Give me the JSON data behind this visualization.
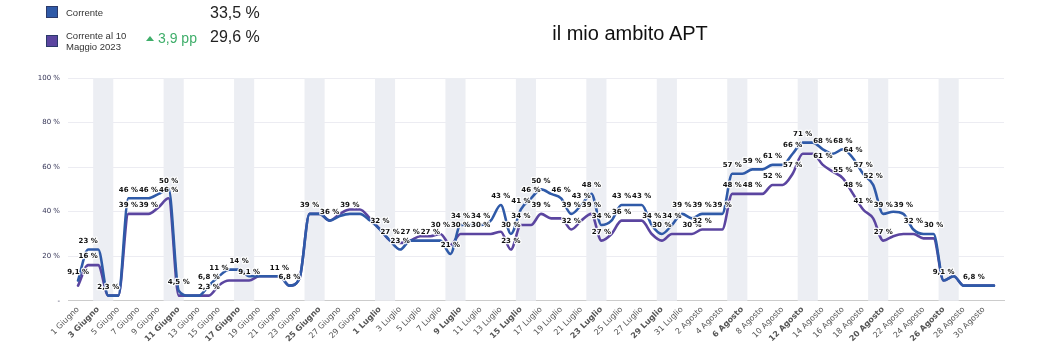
{
  "chart_data": {
    "type": "line",
    "title": "il mio ambito APT",
    "annotations": [
      "33,5 %",
      "3,9 pp",
      "29,6 %"
    ],
    "legend": "top left",
    "grid": "y",
    "marker": "none",
    "line_style": "solid",
    "ylim": [
      0,
      100
    ],
    "yticks": [
      {
        "value": 0,
        "label": "-"
      },
      {
        "value": 20,
        "label": "20 %"
      },
      {
        "value": 40,
        "label": "40 %"
      },
      {
        "value": 60,
        "label": "60 %"
      },
      {
        "value": 80,
        "label": "80 %"
      },
      {
        "value": 100,
        "label": "100 %"
      }
    ],
    "xlim": [
      "--05-31",
      "--09-01"
    ],
    "xticks": [
      {
        "value": "--06-01",
        "label": "1 Giugno"
      },
      {
        "value": "--06-03",
        "label": "3 Giugno"
      },
      {
        "value": "--06-05",
        "label": "5 Giugno"
      },
      {
        "value": "--06-07",
        "label": "7 Giugno"
      },
      {
        "value": "--06-09",
        "label": "9 Giugno"
      },
      {
        "value": "--06-11",
        "label": "11 Giugno"
      },
      {
        "value": "--06-13",
        "label": "13 Giugno"
      },
      {
        "value": "--06-15",
        "label": "15 Giugno"
      },
      {
        "value": "--06-17",
        "label": "17 Giugno"
      },
      {
        "value": "--06-19",
        "label": "19 Giugno"
      },
      {
        "value": "--06-21",
        "label": "21 Giugno"
      },
      {
        "value": "--06-23",
        "label": "23 Giugno"
      },
      {
        "value": "--06-25",
        "label": "25 Giugno"
      },
      {
        "value": "--06-27",
        "label": "27 Giugno"
      },
      {
        "value": "--06-29",
        "label": "29 Giugno"
      },
      {
        "value": "--07-01",
        "label": "1 Luglio"
      },
      {
        "value": "--07-03",
        "label": "3 Luglio"
      },
      {
        "value": "--07-05",
        "label": "5 Luglio"
      },
      {
        "value": "--07-07",
        "label": "7 Luglio"
      },
      {
        "value": "--07-09",
        "label": "9 Luglio"
      },
      {
        "value": "--07-11",
        "label": "11 Luglio"
      },
      {
        "value": "--07-13",
        "label": "13 Luglio"
      },
      {
        "value": "--07-15",
        "label": "15 Luglio"
      },
      {
        "value": "--07-17",
        "label": "17 Luglio"
      },
      {
        "value": "--07-19",
        "label": "19 Luglio"
      },
      {
        "value": "--07-21",
        "label": "21 Luglio"
      },
      {
        "value": "--07-23",
        "label": "23 Luglio"
      },
      {
        "value": "--07-25",
        "label": "25 Luglio"
      },
      {
        "value": "--07-27",
        "label": "27 Luglio"
      },
      {
        "value": "--07-29",
        "label": "29 Luglio"
      },
      {
        "value": "--07-31",
        "label": "31 Luglio"
      },
      {
        "value": "--08-02",
        "label": "2 Agosto"
      },
      {
        "value": "--08-04",
        "label": "4 Agosto"
      },
      {
        "value": "--08-06",
        "label": "6 Agosto"
      },
      {
        "value": "--08-08",
        "label": "8 Agosto"
      },
      {
        "value": "--08-10",
        "label": "10 Agosto"
      },
      {
        "value": "--08-12",
        "label": "12 Agosto"
      },
      {
        "value": "--08-14",
        "label": "14 Agosto"
      },
      {
        "value": "--08-16",
        "label": "16 Agosto"
      },
      {
        "value": "--08-18",
        "label": "18 Agosto"
      },
      {
        "value": "--08-20",
        "label": "20 Agosto"
      },
      {
        "value": "--08-22",
        "label": "22 Agosto"
      },
      {
        "value": "--08-24",
        "label": "24 Agosto"
      },
      {
        "value": "--08-26",
        "label": "26 Agosto"
      },
      {
        "value": "--08-28",
        "label": "28 Agosto"
      },
      {
        "value": "--08-30",
        "label": "30 Agosto"
      }
    ],
    "bands": [
      {
        "axis": "x",
        "from": "--06-02T12:00",
        "to": "--06-04T12:00",
        "color": "#eceef3"
      },
      {
        "axis": "x",
        "from": "--06-09T12:00",
        "to": "--06-11T12:00",
        "color": "#eceef3"
      },
      {
        "axis": "x",
        "from": "--06-16T12:00",
        "to": "--06-18T12:00",
        "color": "#eceef3"
      },
      {
        "axis": "x",
        "from": "--06-23T12:00",
        "to": "--06-25T12:00",
        "color": "#eceef3"
      },
      {
        "axis": "x",
        "from": "--06-30T12:00",
        "to": "--07-02T12:00",
        "color": "#eceef3"
      },
      {
        "axis": "x",
        "from": "--07-07T12:00",
        "to": "--07-09T12:00",
        "color": "#eceef3"
      },
      {
        "axis": "x",
        "from": "--07-14T12:00",
        "to": "--07-16T12:00",
        "color": "#eceef3"
      },
      {
        "axis": "x",
        "from": "--07-21T12:00",
        "to": "--07-23T12:00",
        "color": "#eceef3"
      },
      {
        "axis": "x",
        "from": "--07-28T12:00",
        "to": "--07-30T12:00",
        "color": "#eceef3"
      },
      {
        "axis": "x",
        "from": "--08-04T12:00",
        "to": "--08-06T12:00",
        "color": "#eceef3"
      },
      {
        "axis": "x",
        "from": "--08-11T12:00",
        "to": "--08-13T12:00",
        "color": "#eceef3"
      },
      {
        "axis": "x",
        "from": "--08-18T12:00",
        "to": "--08-20T12:00",
        "color": "#eceef3"
      },
      {
        "axis": "x",
        "from": "--08-25T12:00",
        "to": "--08-27T12:00",
        "color": "#eceef3"
      }
    ],
    "x": [
      "--06-01",
      "--06-02",
      "--06-03",
      "--06-04",
      "--06-05",
      "--06-06",
      "--06-07",
      "--06-08",
      "--06-09",
      "--06-10",
      "--06-11",
      "--06-12",
      "--06-13",
      "--06-14",
      "--06-15",
      "--06-16",
      "--06-17",
      "--06-18",
      "--06-19",
      "--06-20",
      "--06-21",
      "--06-22",
      "--06-23",
      "--06-24",
      "--06-25",
      "--06-26",
      "--06-27",
      "--06-28",
      "--06-29",
      "--06-30",
      "--07-01",
      "--07-02",
      "--07-03",
      "--07-04",
      "--07-05",
      "--07-06",
      "--07-07",
      "--07-08",
      "--07-09",
      "--07-10",
      "--07-11",
      "--07-12",
      "--07-13",
      "--07-14",
      "--07-15",
      "--07-16",
      "--07-17",
      "--07-18",
      "--07-19",
      "--07-20",
      "--07-21",
      "--07-22",
      "--07-23",
      "--07-24",
      "--07-25",
      "--07-26",
      "--07-27",
      "--07-28",
      "--07-29",
      "--07-30",
      "--07-31",
      "--08-01",
      "--08-02",
      "--08-03",
      "--08-04",
      "--08-05",
      "--08-06",
      "--08-07",
      "--08-08",
      "--08-09",
      "--08-10",
      "--08-11",
      "--08-12",
      "--08-13",
      "--08-14",
      "--08-15",
      "--08-16",
      "--08-17",
      "--08-18",
      "--08-19",
      "--08-20",
      "--08-21",
      "--08-22",
      "--08-23",
      "--08-24",
      "--08-25",
      "--08-26",
      "--08-27",
      "--08-28",
      "--08-29",
      "--08-30",
      "--08-31"
    ],
    "series": [
      {
        "name": "Corrente",
        "color": "#2f5aa8",
        "values": [
          9.1,
          23,
          23,
          2.3,
          2.3,
          46,
          46,
          46,
          48,
          50,
          4.5,
          2.3,
          2.3,
          6.8,
          11,
          14,
          14,
          11,
          11,
          11,
          11,
          6.8,
          10,
          39,
          39,
          36,
          38,
          39,
          39,
          36,
          32,
          27,
          23,
          27,
          27,
          27,
          27,
          21,
          34,
          34,
          34,
          36,
          43,
          30,
          41,
          46,
          50,
          48,
          46,
          39,
          43,
          48,
          34,
          36,
          43,
          43,
          43,
          34,
          30,
          34,
          39,
          37,
          39,
          39,
          39,
          57,
          57,
          59,
          59,
          61,
          61,
          66,
          71,
          71,
          68,
          66,
          68,
          64,
          57,
          52,
          39,
          40,
          39,
          32,
          30,
          30,
          9.1,
          11,
          6.8,
          6.8,
          6.8,
          6.8
        ],
        "value_labels": [
          "9,1 %",
          "23 %",
          null,
          "2,3 %",
          null,
          "46 %",
          null,
          "46 %",
          null,
          "50 %",
          "4,5 %",
          null,
          null,
          "6,8 %",
          "11 %",
          null,
          "14 %",
          null,
          null,
          null,
          "11 %",
          "6,8 %",
          null,
          "39 %",
          null,
          "36 %",
          null,
          "39 %",
          null,
          null,
          "32 %",
          "27 %",
          "23 %",
          "27 %",
          null,
          "27 %",
          null,
          "21 %",
          "34 %",
          null,
          "34 %",
          null,
          "43 %",
          "30 %",
          "41 %",
          "46 %",
          "50 %",
          null,
          "46 %",
          "39 %",
          "43 %",
          "48 %",
          "34 %",
          null,
          "43 %",
          null,
          "43 %",
          "34 %",
          "30 %",
          "34 %",
          "39 %",
          null,
          "39 %",
          null,
          "39 %",
          "57 %",
          null,
          "59 %",
          null,
          "61 %",
          null,
          "66 %",
          "71 %",
          null,
          "68 %",
          null,
          "68 %",
          "64 %",
          "57 %",
          "52 %",
          "39 %",
          null,
          "39 %",
          "32 %",
          null,
          "30 %",
          "9,1 %",
          null,
          null,
          "6,8 %",
          null,
          null
        ]
      },
      {
        "name": "Corrente al 10 Maggio 2023",
        "color": "#5b45a0",
        "values": [
          6.8,
          16,
          16,
          2.3,
          2.3,
          39,
          39,
          39,
          42,
          46,
          2.3,
          2.3,
          2.3,
          2.3,
          7,
          9.1,
          9.1,
          9.1,
          11,
          11,
          11,
          6.8,
          10,
          39,
          39,
          36,
          39,
          41,
          41,
          37,
          32,
          27,
          26,
          27,
          29,
          29,
          30,
          25,
          30,
          30,
          30,
          30,
          31,
          23,
          34,
          34,
          39,
          37,
          37,
          32,
          36,
          39,
          27,
          30,
          36,
          36,
          36,
          30,
          27,
          30,
          30,
          30,
          32,
          32,
          32,
          48,
          48,
          48,
          48,
          52,
          52,
          57,
          66,
          66,
          61,
          58,
          55,
          48,
          41,
          37,
          27,
          29,
          30,
          30,
          28,
          28,
          9.1,
          11,
          6.8,
          6.8,
          6.8,
          6.8
        ],
        "value_labels": [
          null,
          "16 %",
          null,
          null,
          null,
          "39 %",
          null,
          "39 %",
          null,
          "46 %",
          null,
          null,
          null,
          "2,3 %",
          null,
          null,
          null,
          "9,1 %",
          null,
          null,
          null,
          null,
          null,
          null,
          null,
          null,
          null,
          null,
          null,
          null,
          null,
          null,
          null,
          null,
          null,
          null,
          "30 %",
          null,
          "30 %",
          null,
          "30 %",
          null,
          null,
          "23 %",
          "34 %",
          null,
          "39 %",
          null,
          null,
          "32 %",
          null,
          "39 %",
          "27 %",
          null,
          "36 %",
          null,
          null,
          null,
          null,
          null,
          null,
          "30 %",
          "32 %",
          null,
          null,
          "48 %",
          null,
          "48 %",
          null,
          "52 %",
          null,
          "57 %",
          null,
          null,
          "61 %",
          null,
          "55 %",
          "48 %",
          "41 %",
          null,
          "27 %",
          null,
          null,
          null,
          null,
          null,
          null,
          null,
          null,
          null,
          null,
          null
        ]
      }
    ]
  }
}
